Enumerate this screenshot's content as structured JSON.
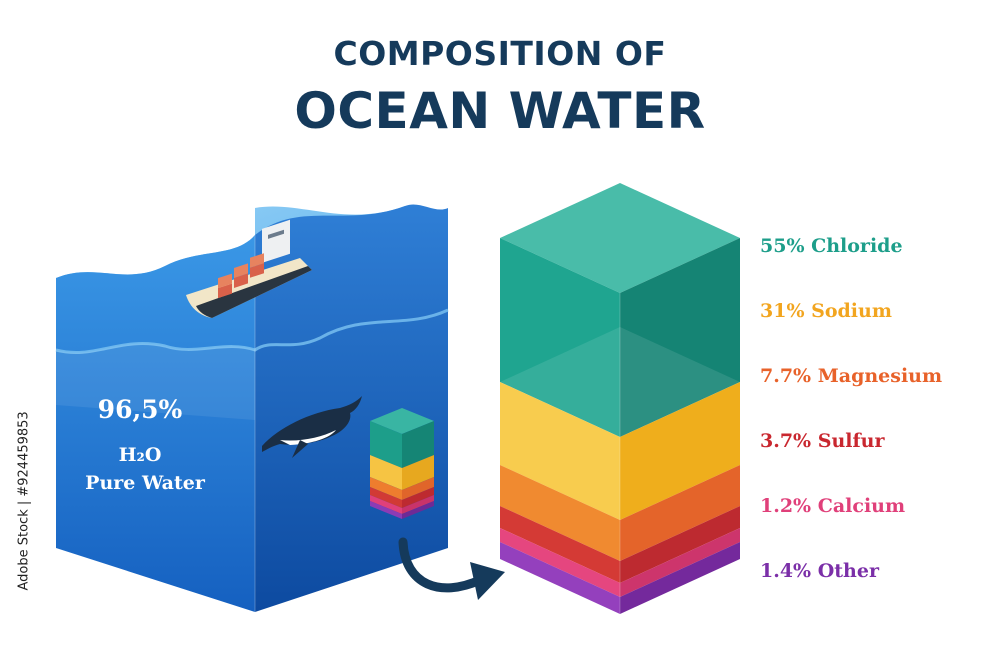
{
  "title": {
    "line1": "COMPOSITION OF",
    "line2": "OCEAN WATER"
  },
  "water_cube": {
    "percent": "96,5%",
    "formula": "H₂O",
    "label": "Pure Water"
  },
  "components": [
    {
      "label": "55% Chloride",
      "share": 55,
      "color": "#1d9e8a"
    },
    {
      "label": "31% Sodium",
      "share": 31,
      "color": "#f2a51f"
    },
    {
      "label": "7.7% Magnesium",
      "share": 7.7,
      "color": "#e8622a"
    },
    {
      "label": "3.7% Sulfur",
      "share": 3.7,
      "color": "#c9272f"
    },
    {
      "label": "1.2% Calcium",
      "share": 1.2,
      "color": "#e0407a"
    },
    {
      "label": "1.4% Other",
      "share": 1.4,
      "color": "#7b2fa8"
    }
  ],
  "credit": "Adobe Stock | #924459853",
  "colors": {
    "title": "#153a5b",
    "water_top": "#1f7fd4",
    "water_deep": "#0d4fa8",
    "arrow": "#153a5b"
  },
  "icons": [
    "cargo-ship-icon",
    "whale-icon",
    "arrow-icon"
  ]
}
